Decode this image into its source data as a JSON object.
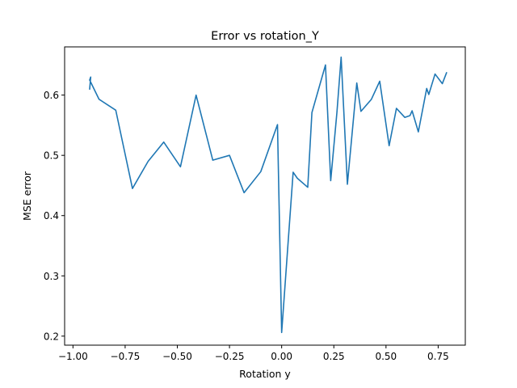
{
  "chart_data": {
    "type": "line",
    "title": "Error vs rotation_Y",
    "xlabel": "Rotation y",
    "ylabel": "MSE error",
    "xlim": [
      -1.04,
      0.88
    ],
    "ylim": [
      0.185,
      0.68
    ],
    "xticks": [
      -1.0,
      -0.75,
      -0.5,
      -0.25,
      0.0,
      0.25,
      0.5,
      0.75
    ],
    "xtick_labels": [
      "−1.00",
      "−0.75",
      "−0.50",
      "−0.25",
      "0.00",
      "0.25",
      "0.50",
      "0.75"
    ],
    "yticks": [
      0.2,
      0.3,
      0.4,
      0.5,
      0.6
    ],
    "ytick_labels": [
      "0.2",
      "0.3",
      "0.4",
      "0.5",
      "0.6"
    ],
    "grid": false,
    "series": [
      {
        "color": "#1f77b4",
        "x": [
          -0.92,
          -0.915,
          -0.92,
          -0.875,
          -0.795,
          -0.715,
          -0.64,
          -0.565,
          -0.485,
          -0.41,
          -0.33,
          -0.25,
          -0.18,
          -0.1,
          -0.02,
          0.0,
          0.055,
          0.075,
          0.125,
          0.145,
          0.21,
          0.235,
          0.265,
          0.285,
          0.315,
          0.36,
          0.38,
          0.43,
          0.47,
          0.515,
          0.55,
          0.59,
          0.615,
          0.625,
          0.655,
          0.695,
          0.705,
          0.735,
          0.77,
          0.79
        ],
        "y": [
          0.61,
          0.63,
          0.625,
          0.593,
          0.575,
          0.445,
          0.49,
          0.522,
          0.481,
          0.6,
          0.492,
          0.5,
          0.438,
          0.473,
          0.551,
          0.206,
          0.472,
          0.462,
          0.447,
          0.571,
          0.65,
          0.458,
          0.572,
          0.663,
          0.452,
          0.62,
          0.573,
          0.593,
          0.623,
          0.516,
          0.578,
          0.563,
          0.566,
          0.574,
          0.539,
          0.611,
          0.601,
          0.635,
          0.619,
          0.637
        ]
      }
    ]
  }
}
